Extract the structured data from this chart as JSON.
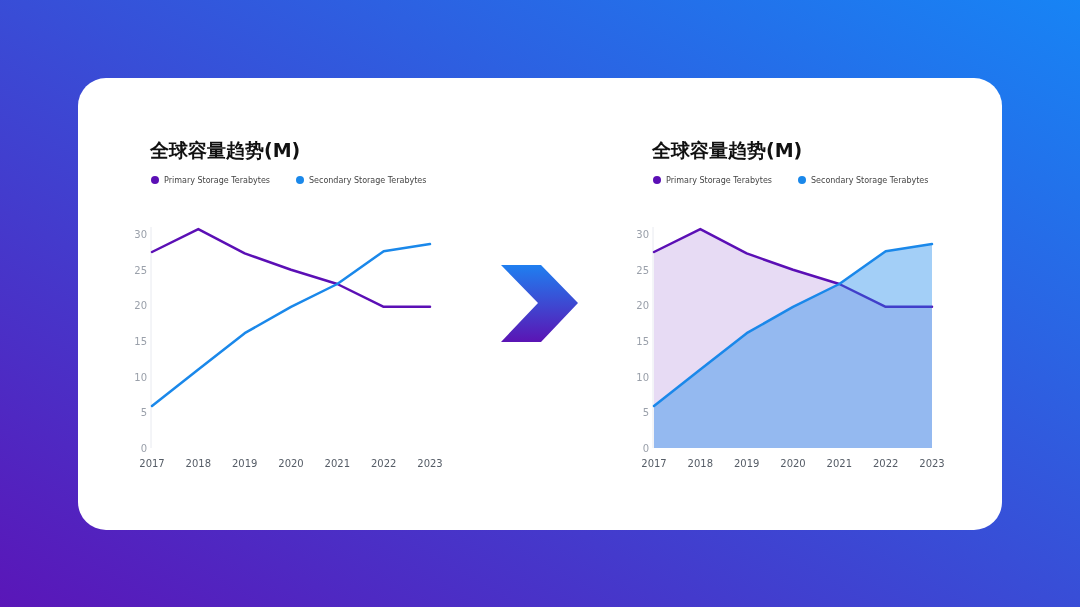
{
  "chart_data": [
    {
      "type": "line",
      "title": "全球容量趋势(M)",
      "categories": [
        "2017",
        "2018",
        "2019",
        "2020",
        "2021",
        "2022",
        "2023"
      ],
      "ylim": [
        0,
        31
      ],
      "yticks": [
        0,
        5,
        10,
        15,
        20,
        25,
        30
      ],
      "legend": "top left",
      "series": [
        {
          "name": "Primary Storage Terabytes",
          "color": "#5b0fb5",
          "values": [
            27.5,
            30.7,
            27.3,
            25,
            23,
            19.8,
            19.8
          ]
        },
        {
          "name": "Secondary Storage Terabytes",
          "color": "#1a88ea",
          "values": [
            5.9,
            11,
            16.1,
            19.8,
            23,
            27.6,
            28.6
          ]
        }
      ]
    },
    {
      "type": "area",
      "title": "全球容量趋势(M)",
      "categories": [
        "2017",
        "2018",
        "2019",
        "2020",
        "2021",
        "2022",
        "2023"
      ],
      "ylim": [
        0,
        31
      ],
      "yticks": [
        0,
        5,
        10,
        15,
        20,
        25,
        30
      ],
      "legend": "top left",
      "series": [
        {
          "name": "Primary Storage Terabytes",
          "color": "#5b0fb5",
          "values": [
            27.5,
            30.7,
            27.3,
            25,
            23,
            19.8,
            19.8
          ]
        },
        {
          "name": "Secondary Storage Terabytes",
          "color": "#1a88ea",
          "values": [
            5.9,
            11,
            16.1,
            19.8,
            23,
            27.6,
            28.6
          ]
        }
      ]
    }
  ]
}
